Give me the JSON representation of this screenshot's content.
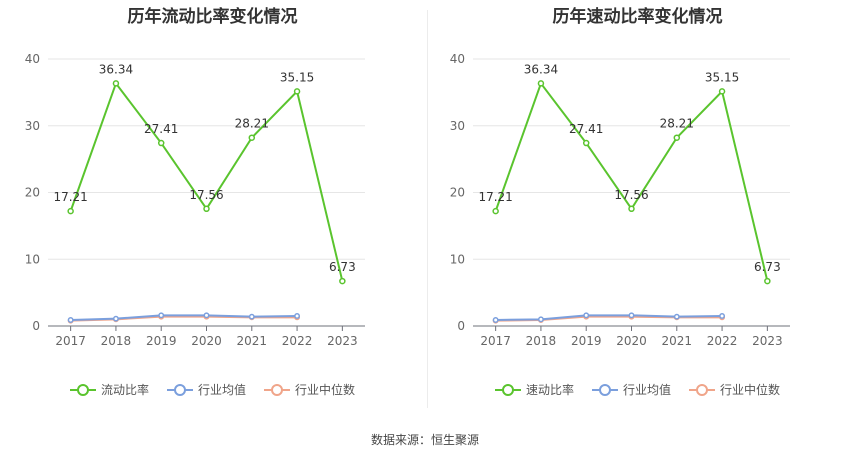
{
  "source": "数据来源：恒生聚源",
  "chart_data": [
    {
      "type": "line",
      "title": "历年流动比率变化情况",
      "categories": [
        "2017",
        "2018",
        "2019",
        "2020",
        "2021",
        "2022",
        "2023"
      ],
      "ylim": [
        0,
        40
      ],
      "yticks": [
        "0",
        "10",
        "20",
        "30",
        "40"
      ],
      "grid": true,
      "legend_position": "bottom",
      "series": [
        {
          "name": "流动比率",
          "color": "#5ac42e",
          "values": [
            17.21,
            36.34,
            27.41,
            17.56,
            28.21,
            35.15,
            6.73
          ],
          "labels": [
            "17.21",
            "36.34",
            "27.41",
            "17.56",
            "28.21",
            "35.15",
            "6.73"
          ]
        },
        {
          "name": "行业均值",
          "color": "#7b9fdd",
          "values": [
            0.9,
            1.1,
            1.6,
            1.6,
            1.4,
            1.5,
            null
          ]
        },
        {
          "name": "行业中位数",
          "color": "#f0a58a",
          "values": [
            0.8,
            1.0,
            1.4,
            1.4,
            1.3,
            1.3,
            null
          ]
        }
      ]
    },
    {
      "type": "line",
      "title": "历年速动比率变化情况",
      "categories": [
        "2017",
        "2018",
        "2019",
        "2020",
        "2021",
        "2022",
        "2023"
      ],
      "ylim": [
        0,
        40
      ],
      "yticks": [
        "0",
        "10",
        "20",
        "30",
        "40"
      ],
      "grid": true,
      "legend_position": "bottom",
      "series": [
        {
          "name": "速动比率",
          "color": "#5ac42e",
          "values": [
            17.21,
            36.34,
            27.41,
            17.56,
            28.21,
            35.15,
            6.73
          ],
          "labels": [
            "17.21",
            "36.34",
            "27.41",
            "17.56",
            "28.21",
            "35.15",
            "6.73"
          ]
        },
        {
          "name": "行业均值",
          "color": "#7b9fdd",
          "values": [
            0.9,
            1.0,
            1.6,
            1.6,
            1.4,
            1.5,
            null
          ]
        },
        {
          "name": "行业中位数",
          "color": "#f0a58a",
          "values": [
            0.8,
            0.9,
            1.4,
            1.4,
            1.3,
            1.3,
            null
          ]
        }
      ]
    }
  ]
}
